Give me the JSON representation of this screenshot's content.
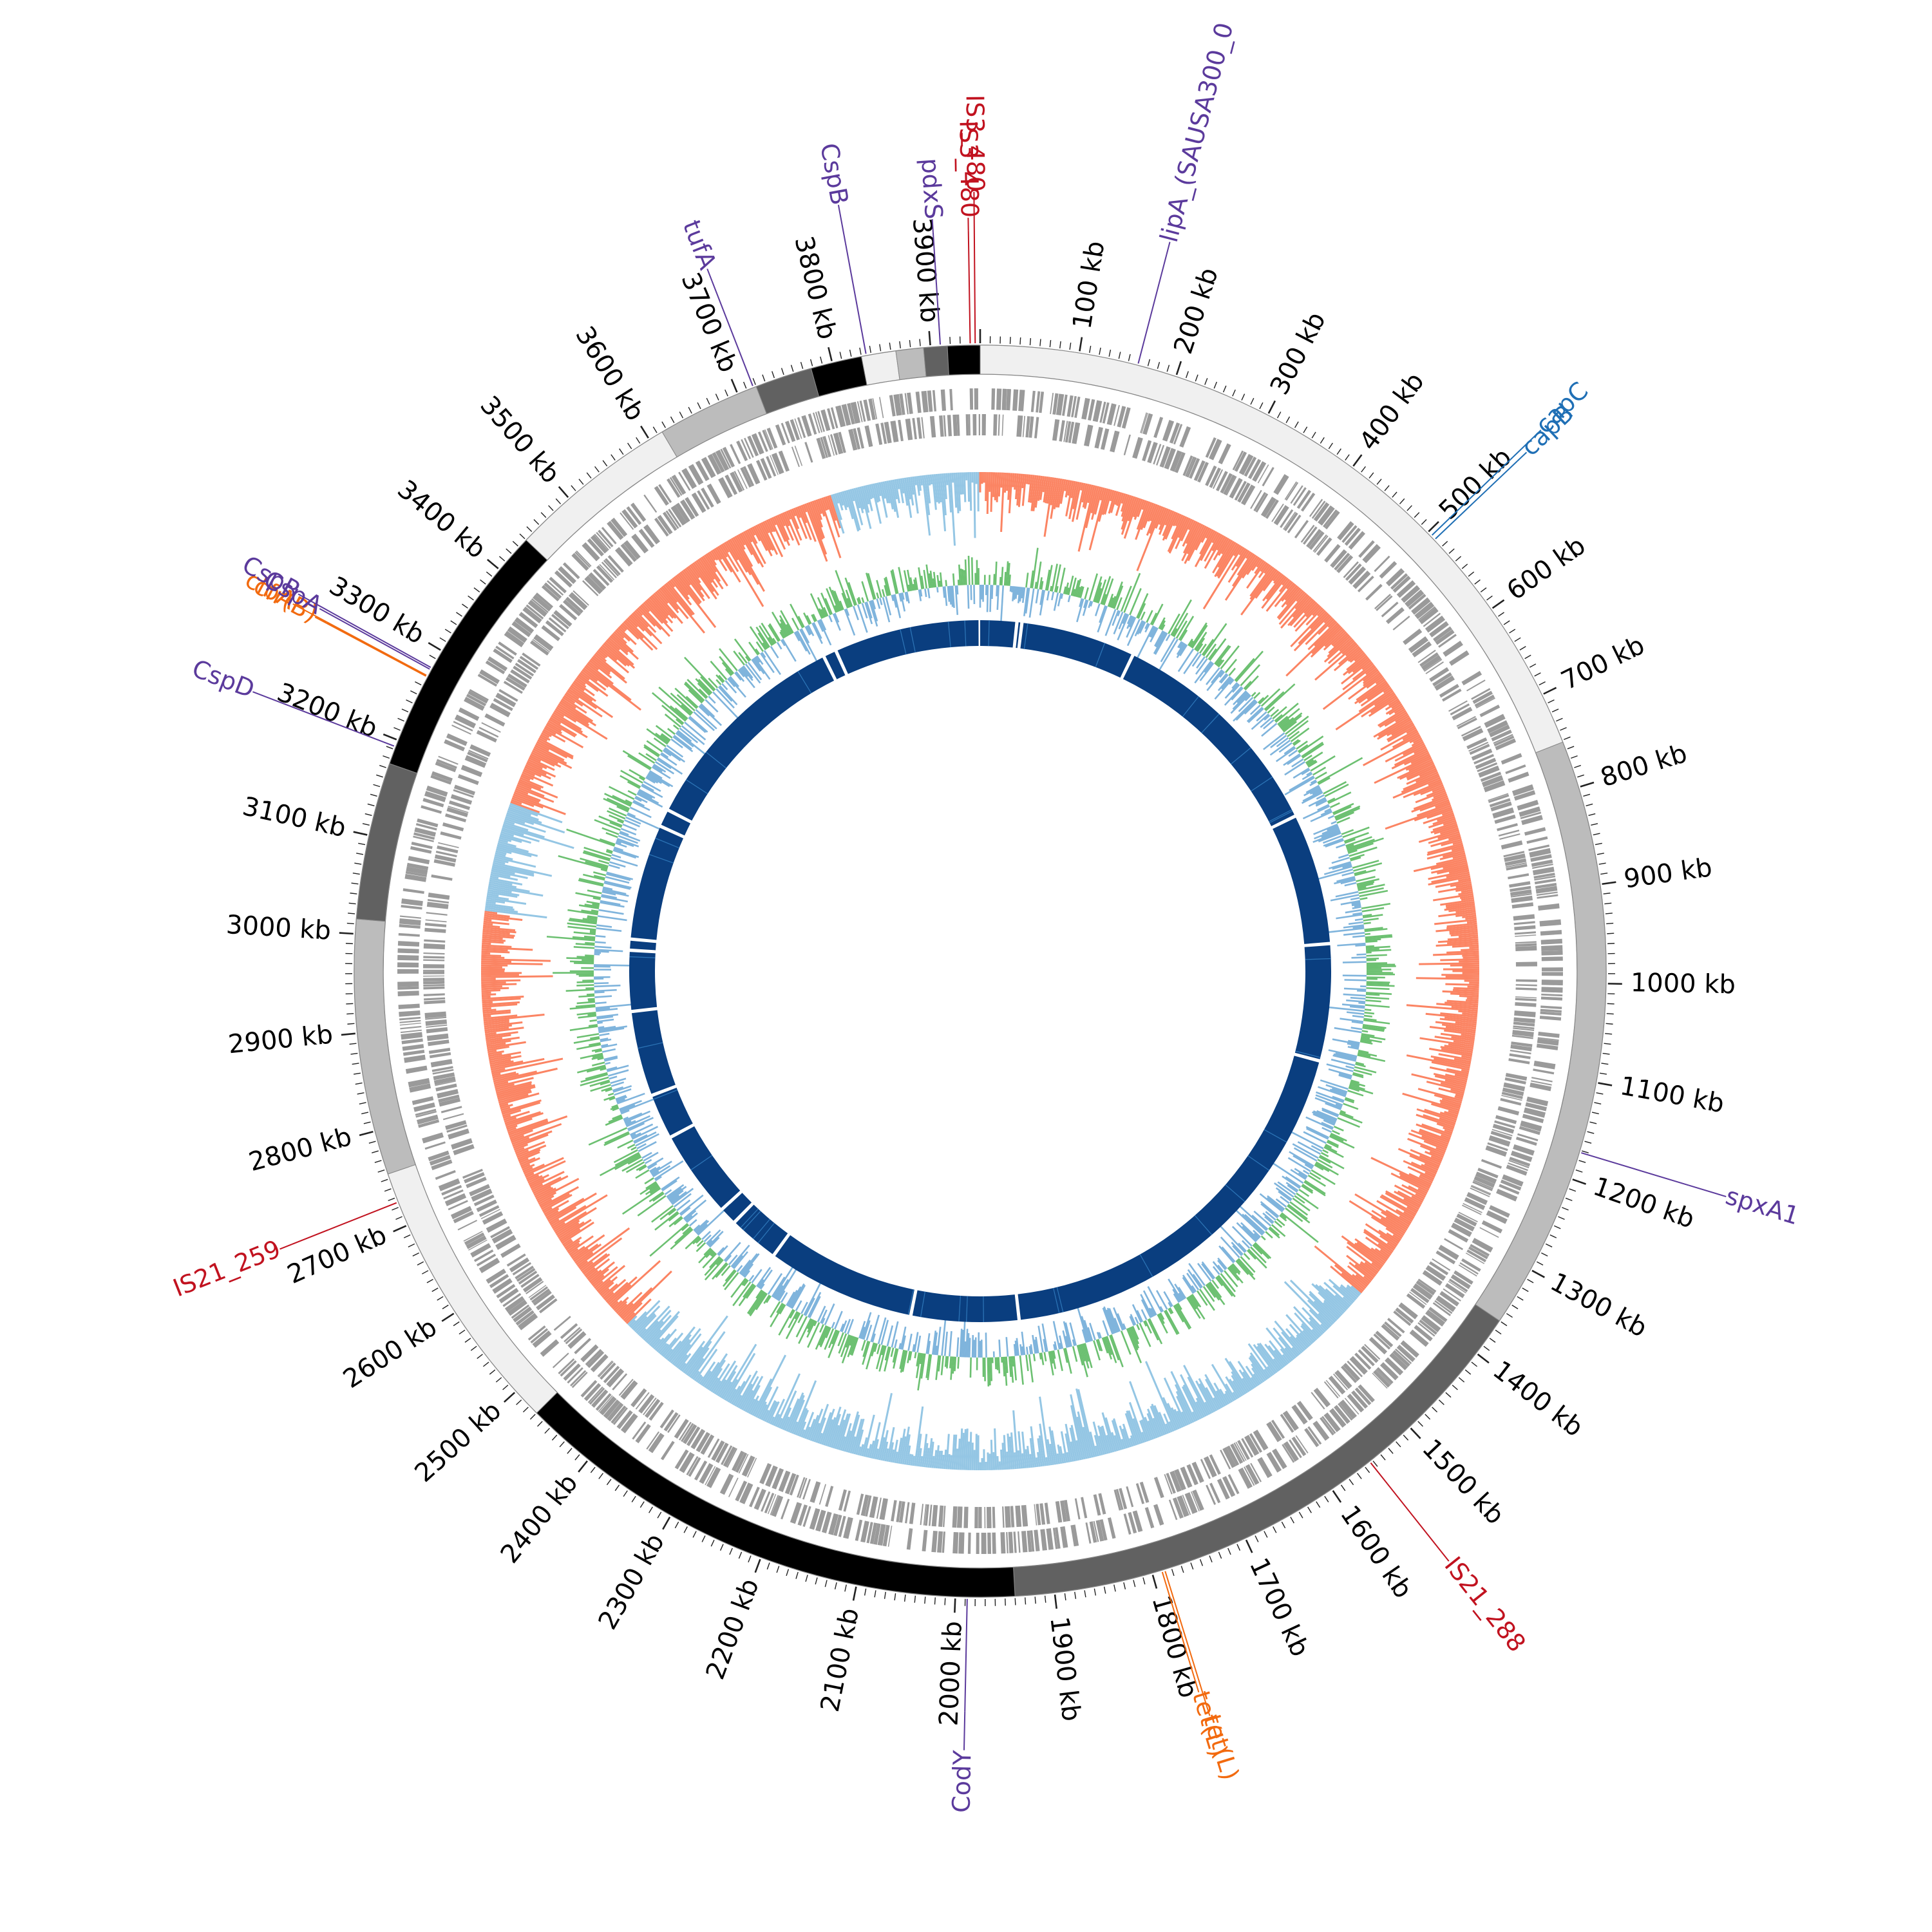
{
  "genome": {
    "total_kb": 3950,
    "tick_step_kb": 100,
    "minor_tick_step_kb": 10,
    "tick_unit": "kb",
    "tick_values": [
      100,
      200,
      300,
      400,
      500,
      600,
      700,
      800,
      900,
      1000,
      1100,
      1200,
      1300,
      1400,
      1500,
      1600,
      1700,
      1800,
      1900,
      2000,
      2100,
      2200,
      2300,
      2400,
      2500,
      2600,
      2700,
      2800,
      2900,
      3000,
      3100,
      3200,
      3300,
      3400,
      3500,
      3600,
      3700,
      3800,
      3900
    ]
  },
  "colors": {
    "gray_features": "#9a9a9a",
    "gc_skew_positive": "#fb8463",
    "gc_skew_negative": "#94c6e4",
    "gc_content_above": "#6cc071",
    "gc_content_below": "#7fb4dc",
    "blast_hit": "#0a3e7f",
    "blast_hit_light": "#2c74b6",
    "mge_label": "#c1121f",
    "resistance_label": "#f26a0f",
    "virulence_label": "#5b3a9c",
    "capsule_label": "#1f6fb5"
  },
  "contigs": [
    {
      "start": 0,
      "end": 752,
      "shade": "#f0f0f0"
    },
    {
      "start": 752,
      "end": 1360,
      "shade": "#bcbcbc"
    },
    {
      "start": 1360,
      "end": 1940,
      "shade": "#616161"
    },
    {
      "start": 1940,
      "end": 2470,
      "shade": "#000000"
    },
    {
      "start": 2470,
      "end": 2755,
      "shade": "#f0f0f0"
    },
    {
      "start": 2755,
      "end": 3015,
      "shade": "#bcbcbc"
    },
    {
      "start": 3015,
      "end": 3175,
      "shade": "#616161"
    },
    {
      "start": 3175,
      "end": 3440,
      "shade": "#000000"
    },
    {
      "start": 3440,
      "end": 3615,
      "shade": "#f0f0f0"
    },
    {
      "start": 3615,
      "end": 3720,
      "shade": "#bcbcbc"
    },
    {
      "start": 3720,
      "end": 3778,
      "shade": "#616161"
    },
    {
      "start": 3778,
      "end": 3830,
      "shade": "#000000"
    },
    {
      "start": 3830,
      "end": 3865,
      "shade": "#f0f0f0"
    },
    {
      "start": 3865,
      "end": 3893,
      "shade": "#bcbcbc"
    },
    {
      "start": 3893,
      "end": 3917,
      "shade": "#616161"
    },
    {
      "start": 3917,
      "end": 3950,
      "shade": "#000000"
    }
  ],
  "blast_gaps_kb": [
    66,
    75,
    283,
    700,
    938,
    1150,
    1905,
    2100,
    2370,
    2462,
    2494,
    2653,
    2735,
    2890,
    3000,
    3020,
    3230,
    3262,
    3660,
    3684
  ],
  "annotations": [
    {
      "label": "IS3_480",
      "pos": 3940,
      "group": "mge"
    },
    {
      "label": "IS3_480",
      "pos": 3945,
      "group": "mge"
    },
    {
      "label": "lipA_(SAUSA300_0",
      "pos": 160,
      "group": "virulence"
    },
    {
      "label": "capC",
      "pos": 505,
      "group": "capsule"
    },
    {
      "label": "capB",
      "pos": 510,
      "group": "capsule"
    },
    {
      "label": "spxA1",
      "pos": 1172,
      "group": "virulence"
    },
    {
      "label": "IS21_288",
      "pos": 1553,
      "group": "mge"
    },
    {
      "label": "tet(L)",
      "pos": 1787,
      "group": "resistance"
    },
    {
      "label": "tet(L)",
      "pos": 1790,
      "group": "resistance"
    },
    {
      "label": "CodY",
      "pos": 1988,
      "group": "virulence"
    },
    {
      "label": "IS21_259",
      "pos": 2725,
      "group": "mge"
    },
    {
      "label": "CspD",
      "pos": 3193,
      "group": "virulence"
    },
    {
      "label": "cfr(B)",
      "pos": 3270,
      "group": "resistance"
    },
    {
      "label": "clbA",
      "pos": 3271,
      "group": "resistance"
    },
    {
      "label": "CspA",
      "pos": 3278,
      "group": "virulence"
    },
    {
      "label": "CspR",
      "pos": 3280,
      "group": "virulence"
    },
    {
      "label": "tufA",
      "pos": 3717,
      "group": "virulence"
    },
    {
      "label": "CspB",
      "pos": 3835,
      "group": "virulence"
    },
    {
      "label": "pdxS",
      "pos": 3910,
      "group": "virulence"
    }
  ]
}
